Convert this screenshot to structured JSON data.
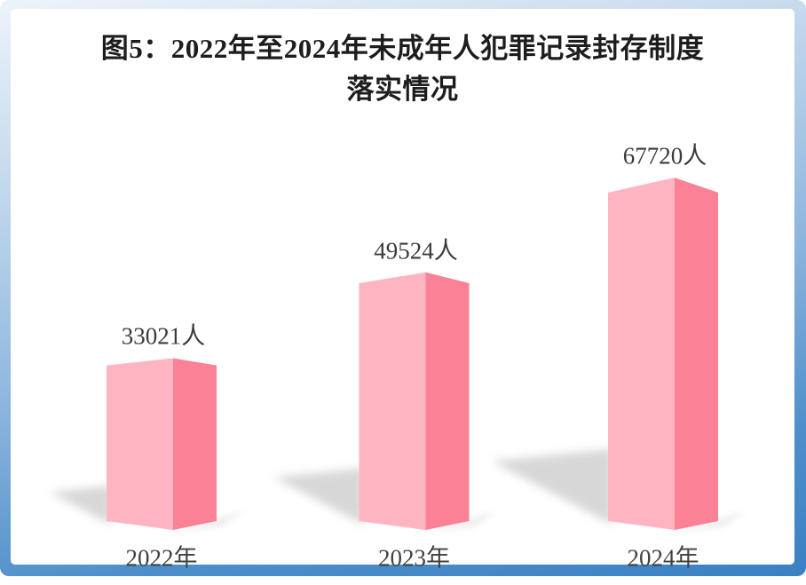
{
  "title": {
    "line1": "图5：2022年至2024年未成年人犯罪记录封存制度",
    "line2": "落实情况"
  },
  "chart_data": {
    "type": "bar",
    "style": "3d-perspective-columns",
    "title": "图5：2022年至2024年未成年人犯罪记录封存制度落实情况",
    "unit": "人",
    "categories": [
      "2022年",
      "2023年",
      "2024年"
    ],
    "values": [
      33021,
      49524,
      67720
    ],
    "value_labels": [
      "33021人",
      "49524人",
      "67720人"
    ],
    "ylim": [
      0,
      70000
    ],
    "grid": false,
    "legend": false,
    "xlabel": "",
    "ylabel": "",
    "colors": {
      "bar_front": "#ffb4c2",
      "bar_side": "#fb8296",
      "floor_shadow": "#bfbfbf",
      "label_text": "#3b3b3b",
      "title_text": "#1d1d1d",
      "frame_border_top": "#edf3fa",
      "frame_border_bottom": "#3a81c3",
      "panel_bg": "#ffffff"
    }
  }
}
